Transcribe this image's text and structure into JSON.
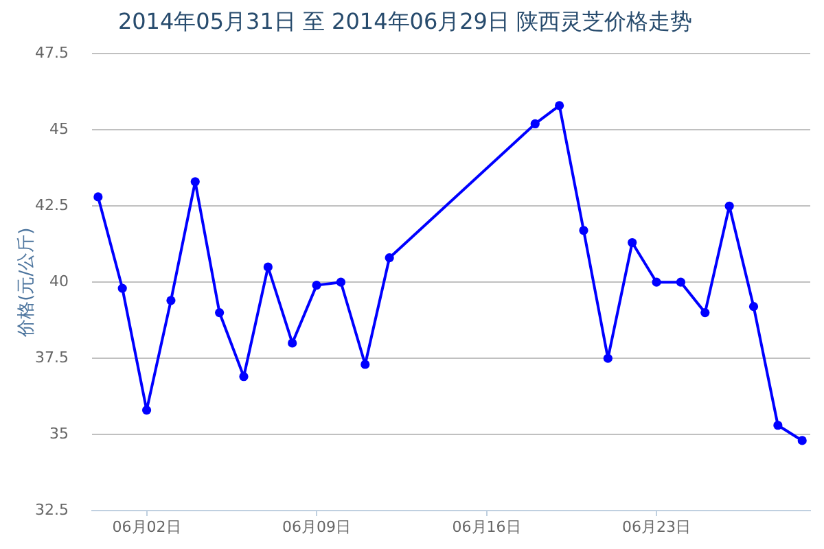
{
  "chart_data": {
    "type": "line",
    "title": "2014年05月31日 至 2014年06月29日 陕西灵芝价格走势",
    "ylabel": "价格(元/公斤)",
    "x": [
      "2014-05-31",
      "2014-06-01",
      "2014-06-02",
      "2014-06-03",
      "2014-06-04",
      "2014-06-05",
      "2014-06-06",
      "2014-06-07",
      "2014-06-08",
      "2014-06-09",
      "2014-06-10",
      "2014-06-11",
      "2014-06-12",
      "2014-06-18",
      "2014-06-19",
      "2014-06-20",
      "2014-06-21",
      "2014-06-22",
      "2014-06-23",
      "2014-06-24",
      "2014-06-25",
      "2014-06-26",
      "2014-06-27",
      "2014-06-28",
      "2014-06-29"
    ],
    "values": [
      42.8,
      39.8,
      35.8,
      39.4,
      43.3,
      39.0,
      36.9,
      40.5,
      38.0,
      39.9,
      40.0,
      37.3,
      40.8,
      45.2,
      45.8,
      41.7,
      37.5,
      41.3,
      40.0,
      40.0,
      39.0,
      42.5,
      39.2,
      35.3,
      34.8
    ],
    "color": "#0000ff",
    "xlim": [
      "2014-05-30T18:00",
      "2014-06-29T08:00"
    ],
    "xticks": [
      {
        "value": "2014-06-02",
        "label": "06月02日"
      },
      {
        "value": "2014-06-09",
        "label": "06月09日"
      },
      {
        "value": "2014-06-16",
        "label": "06月16日"
      },
      {
        "value": "2014-06-23",
        "label": "06月23日"
      }
    ],
    "ylim": [
      32.5,
      47.5
    ],
    "yticks": [
      32.5,
      35,
      37.5,
      40,
      42.5,
      45,
      47.5
    ],
    "grid": "y",
    "marker": "circle",
    "line_style": "solid"
  }
}
